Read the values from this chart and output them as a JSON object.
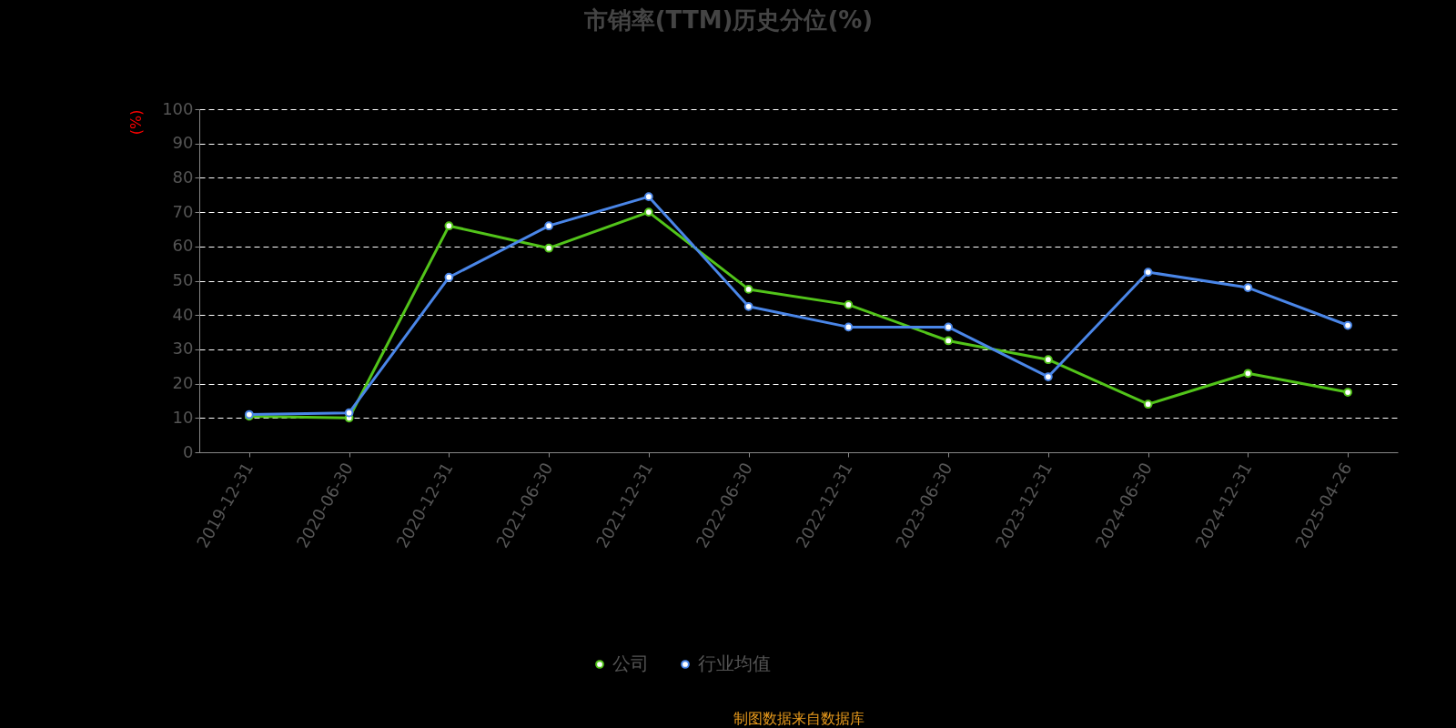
{
  "chart_data": {
    "type": "line",
    "title": "市销率(TTM)历史分位(%)",
    "ylabel": "(%)",
    "categories": [
      "2019-12-31",
      "2020-06-30",
      "2020-12-31",
      "2021-06-30",
      "2021-12-31",
      "2022-06-30",
      "2022-12-31",
      "2023-06-30",
      "2023-12-31",
      "2024-06-30",
      "2024-12-31",
      "2025-04-26"
    ],
    "series": [
      {
        "name": "公司",
        "color": "#52c41a",
        "values": [
          10.5,
          10,
          66,
          59.5,
          70,
          47.5,
          43,
          32.5,
          27,
          14,
          23,
          17.5
        ]
      },
      {
        "name": "行业均值",
        "color": "#4a86e8",
        "values": [
          11,
          11.5,
          51,
          66,
          74.5,
          42.5,
          36.5,
          36.5,
          22,
          52.5,
          48,
          37
        ]
      }
    ],
    "ylim": [
      0,
      100
    ],
    "yticks": [
      0,
      10,
      20,
      30,
      40,
      50,
      60,
      70,
      80,
      90,
      100
    ],
    "grid": "y",
    "legend": "bottom",
    "marker": "circle",
    "line_style": "solid",
    "annotations": [
      "制图数据来自数据库"
    ]
  }
}
